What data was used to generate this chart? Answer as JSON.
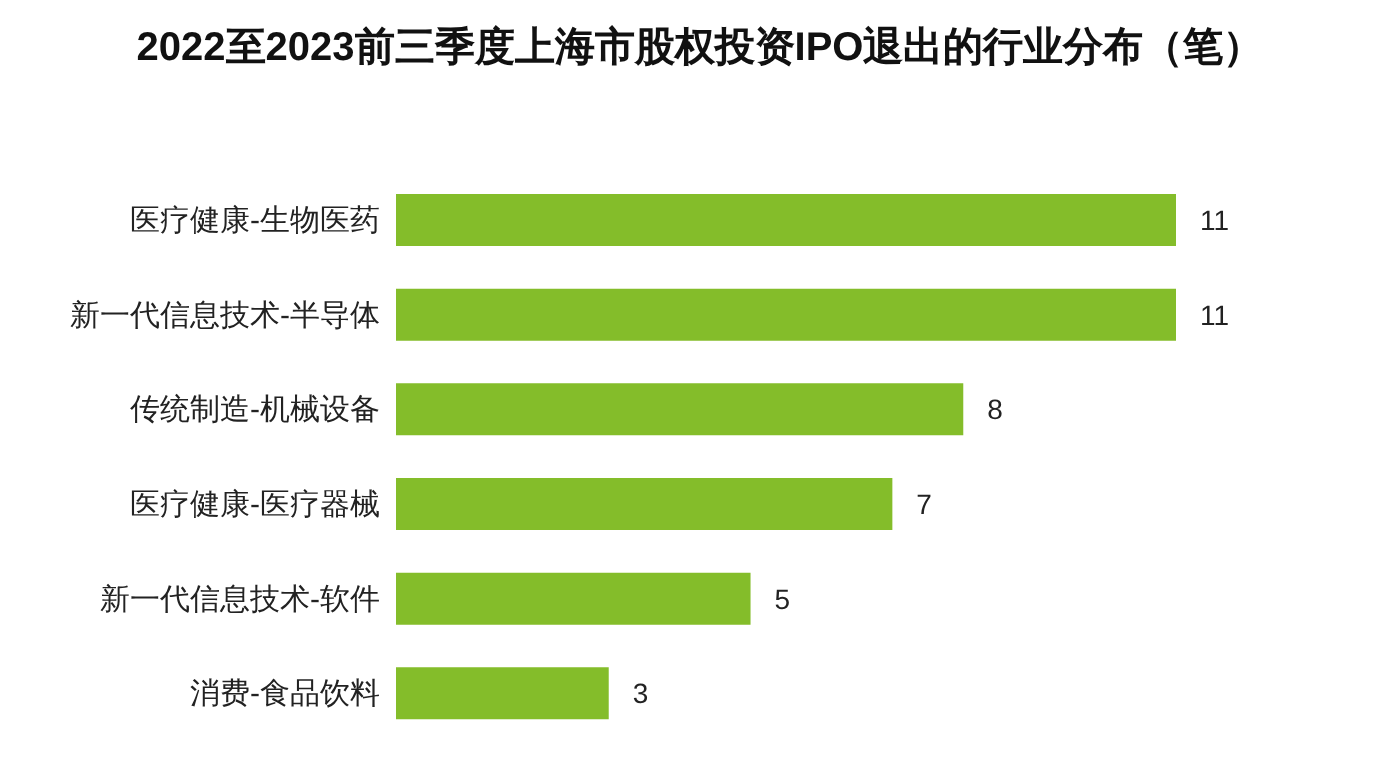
{
  "chart_data": {
    "type": "bar",
    "title": "2022至2023前三季度上海市股权投资IPO退出的行业分布（笔）",
    "orientation": "horizontal",
    "categories": [
      "医疗健康-生物医药",
      "新一代信息技术-半导体",
      "传统制造-机械设备",
      "医疗健康-医疗器械",
      "新一代信息技术-软件",
      "消费-食品饮料"
    ],
    "values": [
      11,
      11,
      8,
      7,
      5,
      3
    ],
    "color": "#84bd2a",
    "data_labels": true
  }
}
